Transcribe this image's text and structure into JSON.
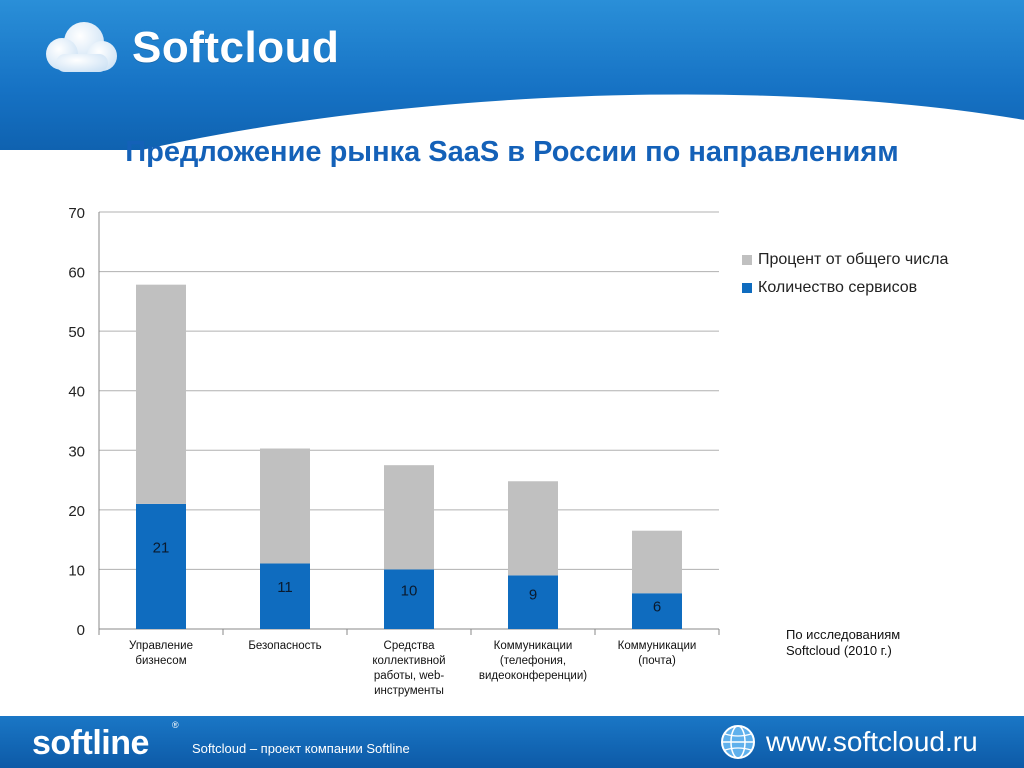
{
  "brand": {
    "name": "Softcloud",
    "colors": {
      "header": "#1672c4",
      "title": "#1461b8",
      "footer": "#0d5aa7"
    }
  },
  "slide": {
    "title": "Предложение рынка SaaS  в России по направлениям",
    "note_line1": "По исследованиям",
    "note_line2": "Softcloud (2010  г.)"
  },
  "footer": {
    "logo": "softline",
    "caption": "Softcloud – проект компании Softline",
    "website": "www.softcloud.ru",
    "icon": "globe-icon"
  },
  "chart_data": {
    "type": "bar",
    "stacked": true,
    "categories": [
      [
        "Управление",
        "бизнесом"
      ],
      [
        "Безопасность"
      ],
      [
        "Средства",
        "коллективной",
        "работы, web-",
        "инструменты"
      ],
      [
        "Коммуникации",
        "(телефония,",
        "видеоконференции)"
      ],
      [
        "Коммуникации",
        "(почта)"
      ]
    ],
    "series": [
      {
        "name": "Количество сервисов",
        "color": "#0f6cbf",
        "values": [
          21,
          11,
          10,
          9,
          6
        ]
      },
      {
        "name": "Процент  от общего числа",
        "color": "#c0c0c0",
        "values": [
          36.8,
          19.3,
          17.5,
          15.8,
          10.5
        ]
      }
    ],
    "data_labels": [
      "21",
      "11",
      "10",
      "9",
      "6"
    ],
    "ylim": [
      0,
      70
    ],
    "yticks": [
      0,
      10,
      20,
      30,
      40,
      50,
      60,
      70
    ],
    "grid": true,
    "legend": "right",
    "legend_order": [
      {
        "name": "Процент  от общего числа",
        "color": "#c0c0c0"
      },
      {
        "name": "Количество сервисов",
        "color": "#0f6cbf"
      }
    ]
  }
}
